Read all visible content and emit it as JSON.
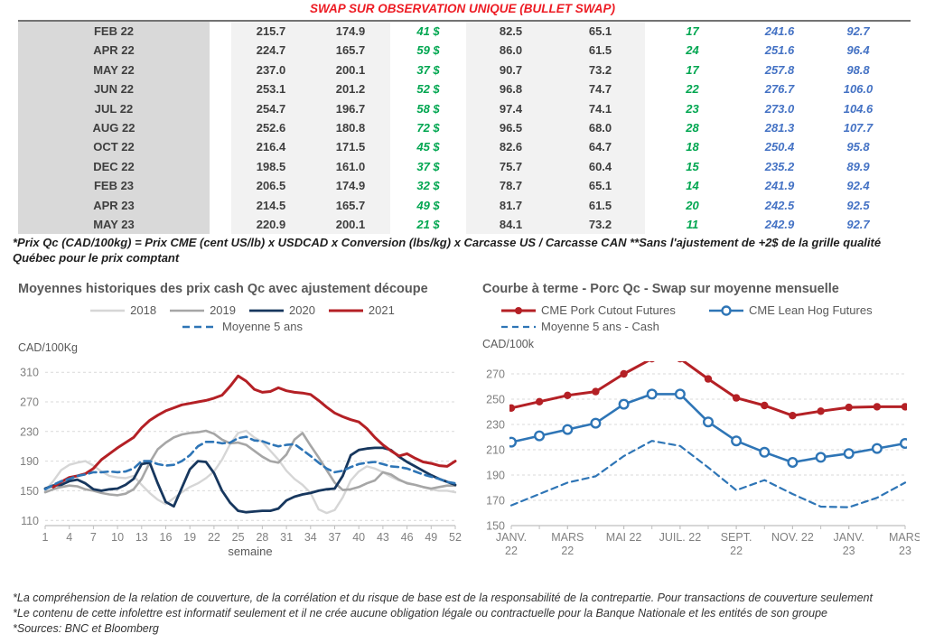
{
  "title": "SWAP SUR OBSERVATION UNIQUE (BULLET SWAP)",
  "colors": {
    "title_red": "#ed1c24",
    "table_text": "#3f3f3f",
    "green": "#00a650",
    "blue": "#4472c4",
    "chart_gray_2018": "#d6d6d6",
    "chart_gray_2019": "#a6a6a6",
    "chart_navy_2020": "#17375e",
    "chart_red": "#b42025",
    "chart_steelblue": "#2e75b6",
    "grid": "#d9d9d9",
    "axis": "#bfbfbf",
    "tick_text": "#808080"
  },
  "table": {
    "rows": [
      {
        "month": "FEB 22",
        "values": [
          "215.7",
          "174.9",
          "41 $",
          "82.5",
          "65.1",
          "17",
          "241.6",
          "92.7"
        ]
      },
      {
        "month": "APR 22",
        "values": [
          "224.7",
          "165.7",
          "59 $",
          "86.0",
          "61.5",
          "24",
          "251.6",
          "96.4"
        ]
      },
      {
        "month": "MAY 22",
        "values": [
          "237.0",
          "200.1",
          "37 $",
          "90.7",
          "73.2",
          "17",
          "257.8",
          "98.8"
        ]
      },
      {
        "month": "JUN 22",
        "values": [
          "253.1",
          "201.2",
          "52 $",
          "96.8",
          "74.7",
          "22",
          "276.7",
          "106.0"
        ]
      },
      {
        "month": "JUL 22",
        "values": [
          "254.7",
          "196.7",
          "58 $",
          "97.4",
          "74.1",
          "23",
          "273.0",
          "104.6"
        ]
      },
      {
        "month": "AUG 22",
        "values": [
          "252.6",
          "180.8",
          "72 $",
          "96.5",
          "68.0",
          "28",
          "281.3",
          "107.7"
        ]
      },
      {
        "month": "OCT 22",
        "values": [
          "216.4",
          "171.5",
          "45 $",
          "82.6",
          "64.7",
          "18",
          "250.4",
          "95.8"
        ]
      },
      {
        "month": "DEC 22",
        "values": [
          "198.5",
          "161.0",
          "37 $",
          "75.7",
          "60.4",
          "15",
          "235.2",
          "89.9"
        ]
      },
      {
        "month": "FEB 23",
        "values": [
          "206.5",
          "174.9",
          "32 $",
          "78.7",
          "65.1",
          "14",
          "241.9",
          "92.4"
        ]
      },
      {
        "month": "APR 23",
        "values": [
          "214.5",
          "165.7",
          "49 $",
          "81.7",
          "61.5",
          "20",
          "242.5",
          "92.5"
        ]
      },
      {
        "month": "MAY 23",
        "values": [
          "220.9",
          "200.1",
          "21 $",
          "84.1",
          "73.2",
          "11",
          "242.9",
          "92.7"
        ]
      }
    ]
  },
  "table_footnote": "*Prix Qc (CAD/100kg) = Prix CME (cent US/lb) x USDCAD x Conversion (lbs/kg) x Carcasse US / Carcasse CAN **Sans l'ajustement de +2$ de la grille qualité Québec pour le prix comptant",
  "chart_data": [
    {
      "type": "line",
      "title": "Moyennes historiques des prix cash Qc avec ajustement découpe",
      "y_unit": "CAD/100Kg",
      "xlabel": "semaine",
      "ylim": [
        103,
        320
      ],
      "yticks": [
        110,
        150,
        190,
        230,
        270,
        310
      ],
      "xticks": [
        {
          "i": 0,
          "lines": [
            "1"
          ]
        },
        {
          "i": 3,
          "lines": [
            "4"
          ]
        },
        {
          "i": 6,
          "lines": [
            "7"
          ]
        },
        {
          "i": 9,
          "lines": [
            "10"
          ]
        },
        {
          "i": 12,
          "lines": [
            "13"
          ]
        },
        {
          "i": 15,
          "lines": [
            "16"
          ]
        },
        {
          "i": 18,
          "lines": [
            "19"
          ]
        },
        {
          "i": 21,
          "lines": [
            "22"
          ]
        },
        {
          "i": 24,
          "lines": [
            "25"
          ]
        },
        {
          "i": 27,
          "lines": [
            "28"
          ]
        },
        {
          "i": 30,
          "lines": [
            "31"
          ]
        },
        {
          "i": 33,
          "lines": [
            "34"
          ]
        },
        {
          "i": 36,
          "lines": [
            "37"
          ]
        },
        {
          "i": 39,
          "lines": [
            "40"
          ]
        },
        {
          "i": 42,
          "lines": [
            "43"
          ]
        },
        {
          "i": 45,
          "lines": [
            "46"
          ]
        },
        {
          "i": 48,
          "lines": [
            "49"
          ]
        },
        {
          "i": 51,
          "lines": [
            "52"
          ]
        }
      ],
      "series": [
        {
          "name": "2018",
          "color": "#d6d6d6",
          "width": 2.4,
          "dash": null,
          "marker": null,
          "values": [
            150,
            163,
            178,
            185,
            188,
            190,
            184,
            176,
            170,
            168,
            167,
            170,
            158,
            147,
            138,
            132,
            140,
            148,
            155,
            160,
            167,
            176,
            192,
            213,
            228,
            231,
            222,
            216,
            204,
            192,
            177,
            166,
            158,
            147,
            125,
            120,
            124,
            141,
            164,
            176,
            183,
            180,
            175,
            169,
            164,
            161,
            158,
            155,
            152,
            150,
            150,
            148
          ]
        },
        {
          "name": "2019",
          "color": "#a6a6a6",
          "width": 2.6,
          "dash": null,
          "marker": null,
          "values": [
            148,
            152,
            155,
            157,
            156,
            152,
            150,
            147,
            145,
            144,
            146,
            152,
            166,
            188,
            206,
            215,
            222,
            226,
            228,
            229,
            231,
            227,
            219,
            214,
            215,
            212,
            204,
            196,
            190,
            188,
            199,
            219,
            228,
            211,
            195,
            178,
            161,
            151,
            152,
            155,
            160,
            164,
            175,
            172,
            165,
            160,
            158,
            155,
            153,
            155,
            157,
            157
          ]
        },
        {
          "name": "2020",
          "color": "#17375e",
          "width": 2.8,
          "dash": null,
          "marker": null,
          "values": [
            153,
            157,
            158,
            163,
            165,
            160,
            152,
            150,
            152,
            153,
            158,
            166,
            186,
            188,
            160,
            135,
            129,
            154,
            179,
            190,
            189,
            174,
            150,
            134,
            123,
            121,
            122,
            123,
            123,
            126,
            137,
            142,
            145,
            147,
            150,
            152,
            153,
            170,
            198,
            205,
            207,
            208,
            208,
            205,
            196,
            189,
            183,
            177,
            171,
            166,
            162,
            158
          ]
        },
        {
          "name": "2021",
          "color": "#b42025",
          "width": 3,
          "dash": null,
          "marker": null,
          "values": [
            null,
            155,
            162,
            168,
            170,
            173,
            180,
            192,
            200,
            208,
            215,
            222,
            235,
            245,
            252,
            258,
            262,
            266,
            268,
            270,
            272,
            275,
            279,
            291,
            305,
            298,
            287,
            283,
            284,
            289,
            285,
            283,
            282,
            280,
            272,
            263,
            255,
            250,
            246,
            243,
            234,
            222,
            212,
            204,
            197,
            200,
            194,
            189,
            187,
            184,
            183,
            190
          ]
        },
        {
          "name": "Moyenne 5 ans",
          "color": "#2e75b6",
          "width": 2.6,
          "dash": "8 5",
          "marker": null,
          "values": [
            152,
            158,
            163,
            166,
            170,
            172,
            175,
            175,
            176,
            175,
            176,
            180,
            190,
            190,
            186,
            184,
            185,
            190,
            198,
            210,
            216,
            216,
            214,
            215,
            221,
            223,
            218,
            217,
            213,
            210,
            212,
            213,
            205,
            197,
            188,
            180,
            175,
            177,
            182,
            186,
            188,
            189,
            186,
            183,
            182,
            180,
            176,
            172,
            169,
            166,
            162,
            160
          ]
        }
      ]
    },
    {
      "type": "line",
      "title": "Courbe à terme - Porc Qc - Swap sur moyenne mensuelle",
      "y_unit": "CAD/100k",
      "xlabel": "",
      "ylim": [
        150,
        280
      ],
      "yticks": [
        150,
        170,
        190,
        210,
        230,
        250,
        270
      ],
      "xticks": [
        {
          "i": 0,
          "lines": [
            "JANV.",
            "22"
          ]
        },
        {
          "i": 2,
          "lines": [
            "MARS",
            "22"
          ]
        },
        {
          "i": 4,
          "lines": [
            "MAI 22"
          ]
        },
        {
          "i": 6,
          "lines": [
            "JUIL. 22"
          ]
        },
        {
          "i": 8,
          "lines": [
            "SEPT.",
            "22"
          ]
        },
        {
          "i": 10,
          "lines": [
            "NOV. 22"
          ]
        },
        {
          "i": 12,
          "lines": [
            "JANV.",
            "23"
          ]
        },
        {
          "i": 14,
          "lines": [
            "MARS",
            "23"
          ]
        }
      ],
      "series": [
        {
          "name": "CME Pork Cutout Futures",
          "color": "#b42025",
          "width": 3,
          "dash": null,
          "marker": "dot",
          "values": [
            243,
            248,
            253,
            256,
            270,
            282,
            282,
            266,
            251,
            245,
            237,
            240.5,
            243.5,
            244,
            244
          ]
        },
        {
          "name": "CME Lean Hog Futures",
          "color": "#2e75b6",
          "width": 2.6,
          "dash": null,
          "marker": "circle",
          "values": [
            216,
            221,
            226,
            231,
            246,
            254,
            254,
            232,
            217,
            208,
            200,
            204,
            207,
            211,
            215
          ]
        },
        {
          "name": "Moyenne 5 ans - Cash",
          "color": "#2e75b6",
          "width": 2.2,
          "dash": "7 5",
          "marker": null,
          "values": [
            166,
            175,
            184,
            189,
            205,
            217,
            213,
            196,
            178,
            186,
            175,
            165,
            164.5,
            172,
            184
          ]
        }
      ]
    }
  ],
  "footnotes": [
    "*La compréhension de la relation de couverture, de la corrélation et du risque de base est de la responsabilité de la contrepartie. Pour transactions de couverture seulement",
    "*Le contenu de cette infolettre est informatif seulement et il ne crée aucune obligation légale ou contractuelle pour la Banque Nationale et les entités de son groupe",
    "*Sources: BNC et Bloomberg"
  ]
}
